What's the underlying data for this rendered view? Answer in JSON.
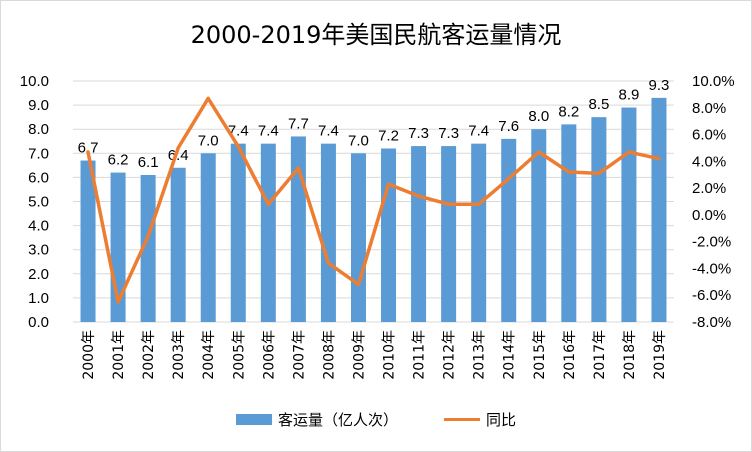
{
  "chart_data": {
    "type": "bar+line",
    "title": "2000-2019年美国民航客运量情况",
    "categories": [
      "2000年",
      "2001年",
      "2002年",
      "2003年",
      "2004年",
      "2005年",
      "2006年",
      "2007年",
      "2008年",
      "2009年",
      "2010年",
      "2011年",
      "2012年",
      "2013年",
      "2014年",
      "2015年",
      "2016年",
      "2017年",
      "2018年",
      "2019年"
    ],
    "series": [
      {
        "name": "客运量（亿人次）",
        "type": "bar",
        "axis": "left",
        "color": "#5b9bd5",
        "values": [
          6.7,
          6.2,
          6.1,
          6.4,
          7.0,
          7.4,
          7.4,
          7.7,
          7.4,
          7.0,
          7.2,
          7.3,
          7.3,
          7.4,
          7.6,
          8.0,
          8.2,
          8.5,
          8.9,
          9.3
        ],
        "labels": [
          "6.7",
          "6.2",
          "6.1",
          "6.4",
          "7.0",
          "7.4",
          "7.4",
          "7.7",
          "7.4",
          "7.0",
          "7.2",
          "7.3",
          "7.3",
          "7.4",
          "7.6",
          "8.0",
          "8.2",
          "8.5",
          "8.9",
          "9.3"
        ]
      },
      {
        "name": "同比",
        "type": "line",
        "axis": "right",
        "color": "#ed7d31",
        "values": [
          4.7,
          -6.5,
          -1.6,
          5.0,
          8.7,
          5.1,
          0.8,
          3.5,
          -3.6,
          -5.2,
          2.3,
          1.4,
          0.8,
          0.8,
          2.7,
          4.7,
          3.2,
          3.1,
          4.7,
          4.2
        ]
      }
    ],
    "y_left": {
      "min": 0,
      "max": 10,
      "step": 1,
      "ticks": [
        "0.0",
        "1.0",
        "2.0",
        "3.0",
        "4.0",
        "5.0",
        "6.0",
        "7.0",
        "8.0",
        "9.0",
        "10.0"
      ]
    },
    "y_right": {
      "min": -8,
      "max": 10,
      "step": 2,
      "ticks": [
        "-8.0%",
        "-6.0%",
        "-4.0%",
        "-2.0%",
        "0.0%",
        "2.0%",
        "4.0%",
        "6.0%",
        "8.0%",
        "10.0%"
      ]
    },
    "grid": true,
    "legend": "bottom"
  }
}
